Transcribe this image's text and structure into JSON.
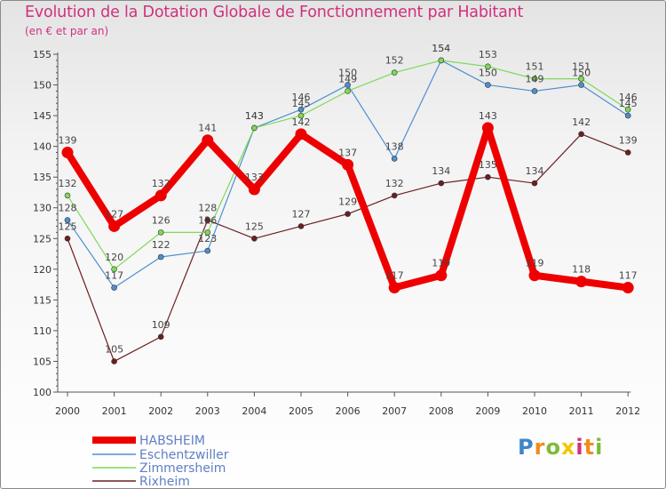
{
  "title": "Evolution de la Dotation Globale de Fonctionnement par Habitant",
  "subtitle": "(en € et par an)",
  "logo_text": "Proxiti",
  "chart_data": {
    "type": "line",
    "title": "Evolution de la Dotation Globale de Fonctionnement par Habitant",
    "subtitle": "(en € et par an)",
    "xlabel": "",
    "ylabel": "",
    "ylim": [
      100,
      155
    ],
    "yticks": [
      100,
      105,
      110,
      115,
      120,
      125,
      130,
      135,
      140,
      145,
      150,
      155
    ],
    "x": [
      "2000",
      "2001",
      "2002",
      "2003",
      "2004",
      "2005",
      "2006",
      "2007",
      "2008",
      "2009",
      "2010",
      "2011",
      "2012"
    ],
    "grid": false,
    "legend_position": "bottom-left",
    "series": [
      {
        "name": "HABSHEIM",
        "color": "#ee0000",
        "values": [
          139,
          127,
          132,
          141,
          133,
          142,
          137,
          117,
          119,
          143,
          119,
          118,
          117
        ]
      },
      {
        "name": "Eschentzwiller",
        "color": "#4d8fcf",
        "values": [
          128,
          117,
          122,
          123,
          143,
          146,
          150,
          138,
          154,
          150,
          149,
          150,
          145
        ]
      },
      {
        "name": "Zimmersheim",
        "color": "#7ed957",
        "values": [
          132,
          120,
          126,
          126,
          143,
          145,
          149,
          152,
          154,
          153,
          151,
          151,
          146
        ]
      },
      {
        "name": "Rixheim",
        "color": "#6b1f1f",
        "values": [
          125,
          105,
          109,
          128,
          125,
          127,
          129,
          132,
          134,
          135,
          134,
          142,
          139
        ]
      }
    ]
  }
}
